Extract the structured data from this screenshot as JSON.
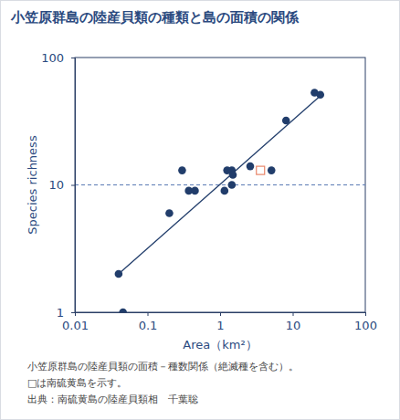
{
  "chart_data": {
    "type": "scatter",
    "title": "小笠原群島の陸産貝類の種類と島の面積の関係",
    "x_label": "Area（km²）",
    "y_label": "Species richness",
    "log": true,
    "xlim": [
      0.01,
      100
    ],
    "ylim": [
      1,
      100
    ],
    "xticks": [
      0.01,
      0.1,
      1,
      10,
      100
    ],
    "yticks": [
      1,
      10,
      100
    ],
    "hlines": [
      10
    ],
    "notes": [
      "小笠原群島の陸産貝類の面積－種数関係（絶滅種を含む）。",
      "□は南硫黄島を示す。",
      "出典：南硫黄島の陸産貝類相　千葉聡"
    ],
    "series": [
      {
        "type": "scatter",
        "marker": "circle",
        "color": "#213d6b",
        "x": [
          0.04,
          0.046,
          0.2,
          0.3,
          0.37,
          0.45,
          1.15,
          1.25,
          1.45,
          1.5,
          1.45,
          2.6,
          5.1,
          8.1,
          20,
          24
        ],
        "values": [
          2,
          1,
          6,
          13,
          9,
          9,
          9,
          13,
          13,
          12,
          10,
          14,
          13,
          32,
          53,
          51
        ]
      },
      {
        "type": "scatter",
        "marker": "square",
        "color": "#e8866a",
        "x": [
          3.6
        ],
        "values": [
          13
        ]
      },
      {
        "type": "line",
        "line_style": "solid",
        "color": "#213d6b",
        "x": [
          0.04,
          24
        ],
        "values": [
          2,
          50
        ]
      }
    ]
  }
}
